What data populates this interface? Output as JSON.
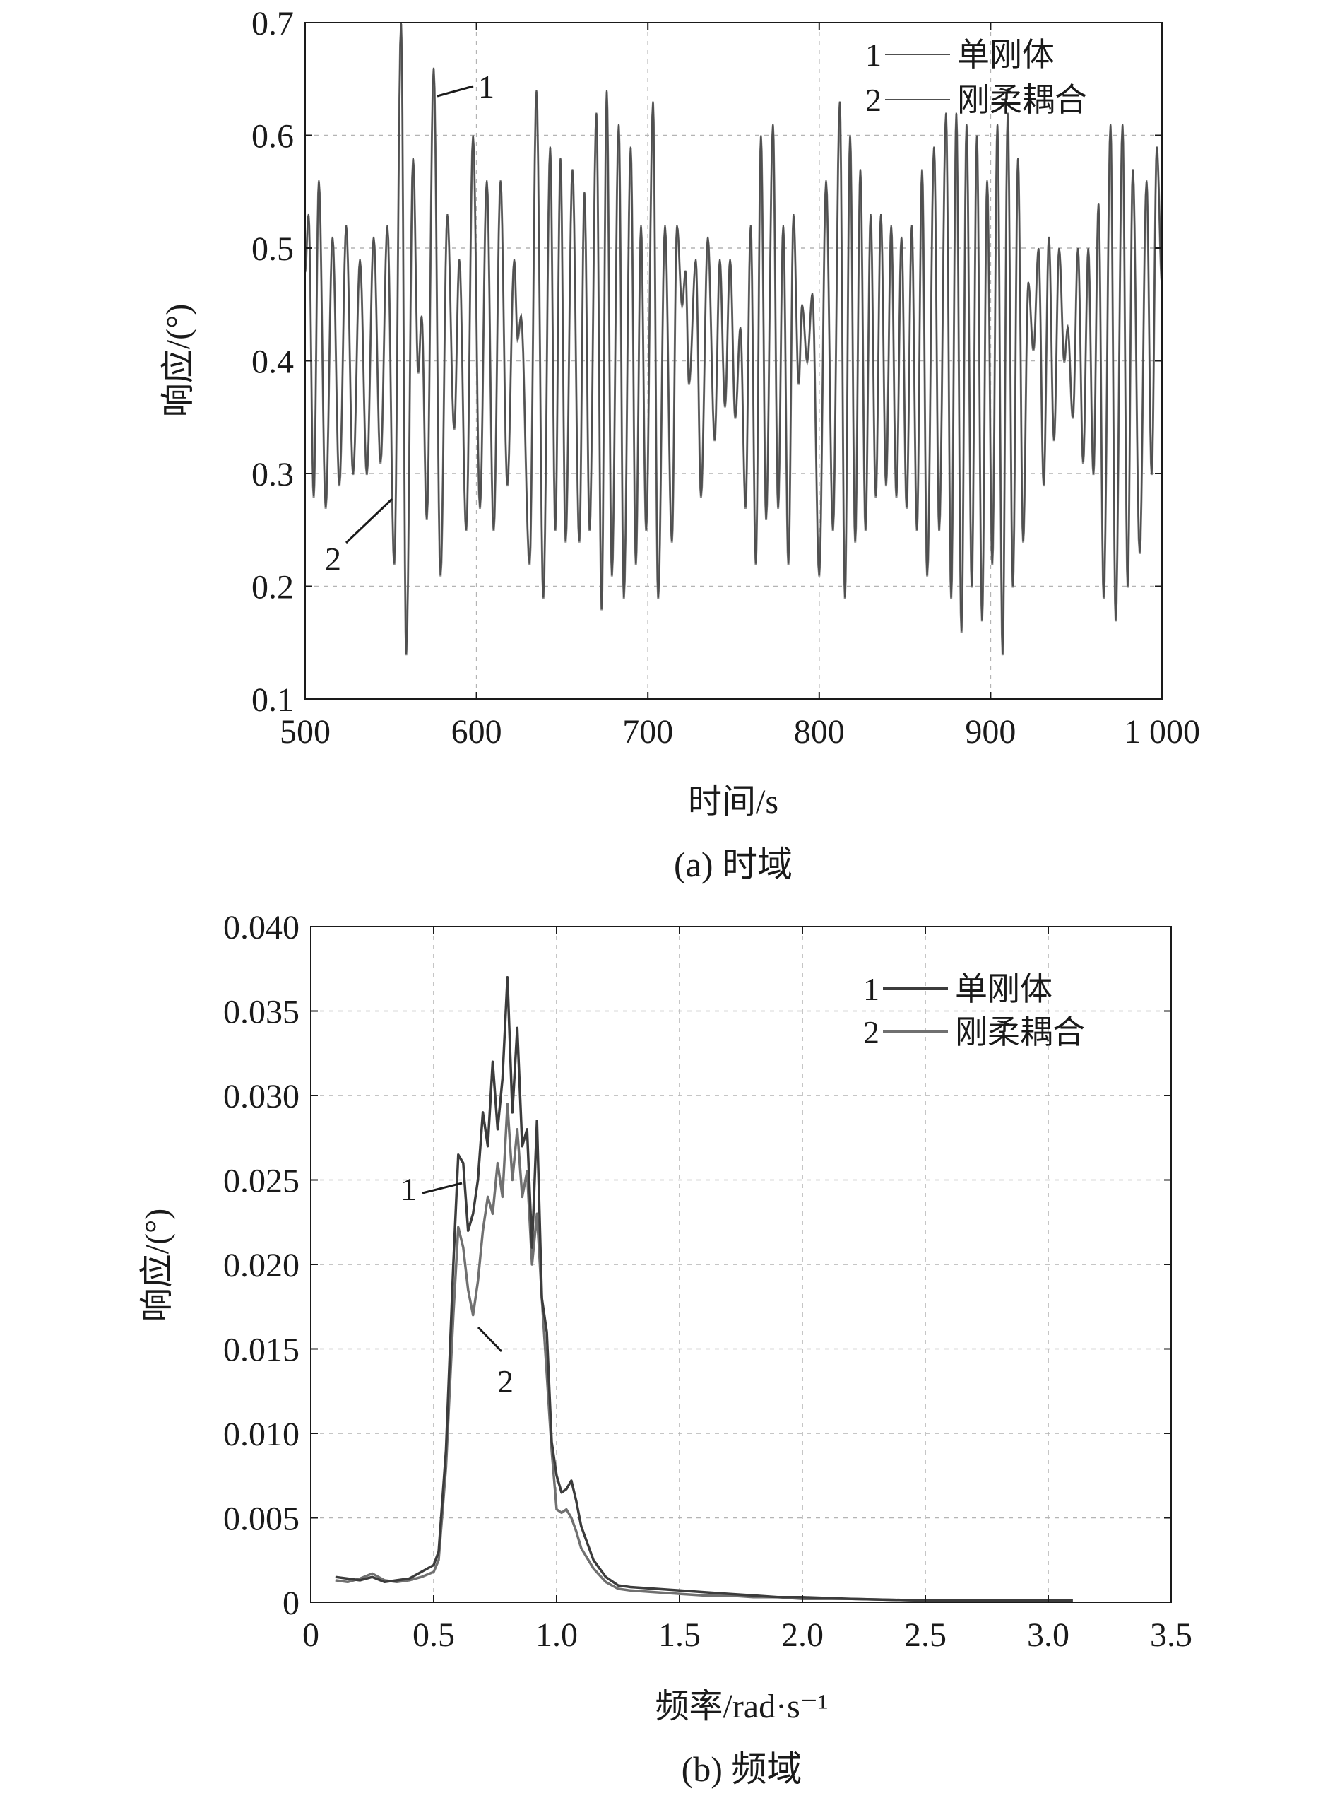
{
  "chart_data": [
    {
      "type": "line",
      "caption": "(a) 时域",
      "xlabel": "时间/s",
      "ylabel": "响应/(°)",
      "xlim": [
        500,
        1000
      ],
      "ylim": [
        0.1,
        0.7
      ],
      "xticks": [
        500,
        600,
        700,
        800,
        900,
        1000
      ],
      "xtick_labels": [
        "500",
        "600",
        "700",
        "800",
        "900",
        "1 000"
      ],
      "yticks": [
        0.1,
        0.2,
        0.3,
        0.4,
        0.5,
        0.6,
        0.7
      ],
      "ytick_labels": [
        "0.1",
        "0.2",
        "0.3",
        "0.4",
        "0.5",
        "0.6",
        "0.7"
      ],
      "legend_position": "top-right",
      "legend": [
        {
          "number": "1",
          "label": "单刚体"
        },
        {
          "number": "2",
          "label": "刚柔耦合"
        }
      ],
      "annotations": [
        {
          "text": "1",
          "series": "1",
          "at": [
            575,
            0.635
          ]
        },
        {
          "text": "2",
          "series": "2",
          "at": [
            550,
            0.28
          ]
        }
      ],
      "line_color": "#505050",
      "extrema": [
        [
          500,
          0.48
        ],
        [
          502,
          0.53
        ],
        [
          505,
          0.28
        ],
        [
          508,
          0.56
        ],
        [
          512,
          0.27
        ],
        [
          516,
          0.51
        ],
        [
          520,
          0.29
        ],
        [
          524,
          0.52
        ],
        [
          528,
          0.3
        ],
        [
          532,
          0.49
        ],
        [
          536,
          0.3
        ],
        [
          540,
          0.51
        ],
        [
          544,
          0.31
        ],
        [
          548,
          0.52
        ],
        [
          552,
          0.22
        ],
        [
          556,
          0.7
        ],
        [
          559,
          0.14
        ],
        [
          563,
          0.58
        ],
        [
          566,
          0.39
        ],
        [
          568,
          0.44
        ],
        [
          571,
          0.26
        ],
        [
          575,
          0.66
        ],
        [
          579,
          0.21
        ],
        [
          583,
          0.53
        ],
        [
          587,
          0.34
        ],
        [
          590,
          0.49
        ],
        [
          594,
          0.25
        ],
        [
          598,
          0.6
        ],
        [
          602,
          0.27
        ],
        [
          606,
          0.56
        ],
        [
          610,
          0.25
        ],
        [
          614,
          0.56
        ],
        [
          618,
          0.29
        ],
        [
          622,
          0.49
        ],
        [
          624,
          0.42
        ],
        [
          626,
          0.44
        ],
        [
          631,
          0.22
        ],
        [
          635,
          0.64
        ],
        [
          639,
          0.19
        ],
        [
          643,
          0.59
        ],
        [
          646,
          0.25
        ],
        [
          649,
          0.58
        ],
        [
          652,
          0.24
        ],
        [
          656,
          0.57
        ],
        [
          660,
          0.24
        ],
        [
          663,
          0.55
        ],
        [
          666,
          0.25
        ],
        [
          670,
          0.62
        ],
        [
          673,
          0.18
        ],
        [
          676,
          0.64
        ],
        [
          679,
          0.21
        ],
        [
          683,
          0.61
        ],
        [
          686,
          0.19
        ],
        [
          690,
          0.59
        ],
        [
          693,
          0.22
        ],
        [
          696,
          0.52
        ],
        [
          699,
          0.25
        ],
        [
          703,
          0.63
        ],
        [
          706,
          0.19
        ],
        [
          710,
          0.52
        ],
        [
          714,
          0.24
        ],
        [
          717,
          0.52
        ],
        [
          720,
          0.45
        ],
        [
          722,
          0.48
        ],
        [
          724,
          0.38
        ],
        [
          728,
          0.49
        ],
        [
          731,
          0.28
        ],
        [
          735,
          0.51
        ],
        [
          739,
          0.33
        ],
        [
          742,
          0.49
        ],
        [
          745,
          0.36
        ],
        [
          748,
          0.49
        ],
        [
          751,
          0.35
        ],
        [
          754,
          0.43
        ],
        [
          757,
          0.27
        ],
        [
          760,
          0.52
        ],
        [
          763,
          0.22
        ],
        [
          766,
          0.6
        ],
        [
          769,
          0.26
        ],
        [
          773,
          0.61
        ],
        [
          776,
          0.27
        ],
        [
          779,
          0.52
        ],
        [
          782,
          0.22
        ],
        [
          785,
          0.53
        ],
        [
          788,
          0.38
        ],
        [
          790,
          0.45
        ],
        [
          793,
          0.4
        ],
        [
          796,
          0.46
        ],
        [
          800,
          0.21
        ],
        [
          804,
          0.56
        ],
        [
          808,
          0.25
        ],
        [
          812,
          0.63
        ],
        [
          815,
          0.19
        ],
        [
          818,
          0.6
        ],
        [
          821,
          0.24
        ],
        [
          824,
          0.57
        ],
        [
          827,
          0.25
        ],
        [
          830,
          0.53
        ],
        [
          833,
          0.28
        ],
        [
          836,
          0.53
        ],
        [
          839,
          0.29
        ],
        [
          842,
          0.52
        ],
        [
          845,
          0.28
        ],
        [
          848,
          0.51
        ],
        [
          851,
          0.27
        ],
        [
          854,
          0.52
        ],
        [
          857,
          0.25
        ],
        [
          860,
          0.57
        ],
        [
          863,
          0.21
        ],
        [
          867,
          0.59
        ],
        [
          870,
          0.25
        ],
        [
          874,
          0.62
        ],
        [
          877,
          0.19
        ],
        [
          880,
          0.62
        ],
        [
          883,
          0.16
        ],
        [
          886,
          0.61
        ],
        [
          889,
          0.2
        ],
        [
          892,
          0.6
        ],
        [
          895,
          0.17
        ],
        [
          898,
          0.56
        ],
        [
          901,
          0.22
        ],
        [
          904,
          0.61
        ],
        [
          907,
          0.14
        ],
        [
          910,
          0.62
        ],
        [
          913,
          0.2
        ],
        [
          916,
          0.58
        ],
        [
          919,
          0.24
        ],
        [
          922,
          0.47
        ],
        [
          925,
          0.41
        ],
        [
          928,
          0.5
        ],
        [
          931,
          0.29
        ],
        [
          934,
          0.51
        ],
        [
          937,
          0.33
        ],
        [
          940,
          0.5
        ],
        [
          943,
          0.4
        ],
        [
          945,
          0.43
        ],
        [
          948,
          0.35
        ],
        [
          951,
          0.5
        ],
        [
          954,
          0.31
        ],
        [
          957,
          0.5
        ],
        [
          960,
          0.3
        ],
        [
          963,
          0.54
        ],
        [
          966,
          0.19
        ],
        [
          970,
          0.61
        ],
        [
          973,
          0.17
        ],
        [
          977,
          0.61
        ],
        [
          980,
          0.2
        ],
        [
          983,
          0.57
        ],
        [
          987,
          0.23
        ],
        [
          991,
          0.56
        ],
        [
          994,
          0.3
        ],
        [
          997,
          0.59
        ],
        [
          1000,
          0.47
        ]
      ]
    },
    {
      "type": "line",
      "caption": "(b) 频域",
      "xlabel": "频率/rad·s⁻¹",
      "ylabel": "响应/(°)",
      "xlim": [
        0,
        3.5
      ],
      "ylim": [
        0,
        0.04
      ],
      "xticks": [
        0,
        0.5,
        1.0,
        1.5,
        2.0,
        2.5,
        3.0,
        3.5
      ],
      "xtick_labels": [
        "0",
        "0.5",
        "1.0",
        "1.5",
        "2.0",
        "2.5",
        "3.0",
        "3.5"
      ],
      "yticks": [
        0,
        0.005,
        0.01,
        0.015,
        0.02,
        0.025,
        0.03,
        0.035,
        0.04
      ],
      "ytick_labels": [
        "0",
        "0.005",
        "0.010",
        "0.015",
        "0.020",
        "0.025",
        "0.030",
        "0.035",
        "0.040"
      ],
      "legend_position": "top-right",
      "legend": [
        {
          "number": "1",
          "label": "单刚体"
        },
        {
          "number": "2",
          "label": "刚柔耦合"
        }
      ],
      "annotations": [
        {
          "text": "1",
          "series": "1",
          "at": [
            0.6,
            0.0265
          ]
        },
        {
          "text": "2",
          "series": "2",
          "at": [
            0.65,
            0.0165
          ]
        }
      ],
      "series": [
        {
          "name": "1",
          "color": "#3c3c3c",
          "x": [
            0.1,
            0.15,
            0.2,
            0.25,
            0.3,
            0.35,
            0.4,
            0.45,
            0.5,
            0.52,
            0.55,
            0.58,
            0.6,
            0.62,
            0.64,
            0.66,
            0.68,
            0.7,
            0.72,
            0.74,
            0.76,
            0.78,
            0.8,
            0.82,
            0.84,
            0.86,
            0.88,
            0.9,
            0.92,
            0.94,
            0.96,
            0.98,
            1.0,
            1.02,
            1.04,
            1.06,
            1.08,
            1.1,
            1.15,
            1.2,
            1.25,
            1.3,
            1.4,
            1.5,
            1.6,
            1.7,
            1.8,
            1.9,
            2.0,
            2.2,
            2.5,
            2.8,
            3.1
          ],
          "y": [
            0.0015,
            0.0014,
            0.0013,
            0.0015,
            0.0012,
            0.0013,
            0.0014,
            0.0018,
            0.0022,
            0.003,
            0.009,
            0.02,
            0.0265,
            0.026,
            0.022,
            0.023,
            0.025,
            0.029,
            0.027,
            0.032,
            0.028,
            0.031,
            0.037,
            0.029,
            0.034,
            0.027,
            0.028,
            0.021,
            0.0285,
            0.018,
            0.016,
            0.0095,
            0.0075,
            0.0065,
            0.0067,
            0.0072,
            0.006,
            0.0045,
            0.0025,
            0.0015,
            0.001,
            0.0009,
            0.0008,
            0.0007,
            0.0006,
            0.0005,
            0.0004,
            0.0003,
            0.0003,
            0.0002,
            0.0001,
            0.0001,
            0.0001
          ]
        },
        {
          "name": "2",
          "color": "#707070",
          "x": [
            0.1,
            0.15,
            0.2,
            0.25,
            0.3,
            0.35,
            0.4,
            0.45,
            0.5,
            0.52,
            0.55,
            0.58,
            0.6,
            0.62,
            0.64,
            0.66,
            0.68,
            0.7,
            0.72,
            0.74,
            0.76,
            0.78,
            0.8,
            0.82,
            0.84,
            0.86,
            0.88,
            0.9,
            0.92,
            0.94,
            0.96,
            0.98,
            1.0,
            1.02,
            1.04,
            1.06,
            1.08,
            1.1,
            1.15,
            1.2,
            1.25,
            1.3,
            1.4,
            1.5,
            1.6,
            1.7,
            1.8,
            1.9,
            2.0,
            2.2,
            2.5,
            2.8,
            3.1
          ],
          "y": [
            0.0013,
            0.0012,
            0.0014,
            0.0017,
            0.0013,
            0.0012,
            0.0013,
            0.0015,
            0.0018,
            0.0025,
            0.008,
            0.017,
            0.0222,
            0.021,
            0.0185,
            0.017,
            0.019,
            0.022,
            0.024,
            0.023,
            0.026,
            0.024,
            0.0295,
            0.025,
            0.028,
            0.024,
            0.0255,
            0.02,
            0.023,
            0.018,
            0.0135,
            0.009,
            0.0055,
            0.0053,
            0.0055,
            0.005,
            0.0042,
            0.0032,
            0.002,
            0.0012,
            0.0008,
            0.0007,
            0.0006,
            0.0005,
            0.0004,
            0.0004,
            0.0003,
            0.0003,
            0.0002,
            0.0002,
            0.0001,
            0.0001,
            0.0001
          ]
        }
      ]
    }
  ]
}
